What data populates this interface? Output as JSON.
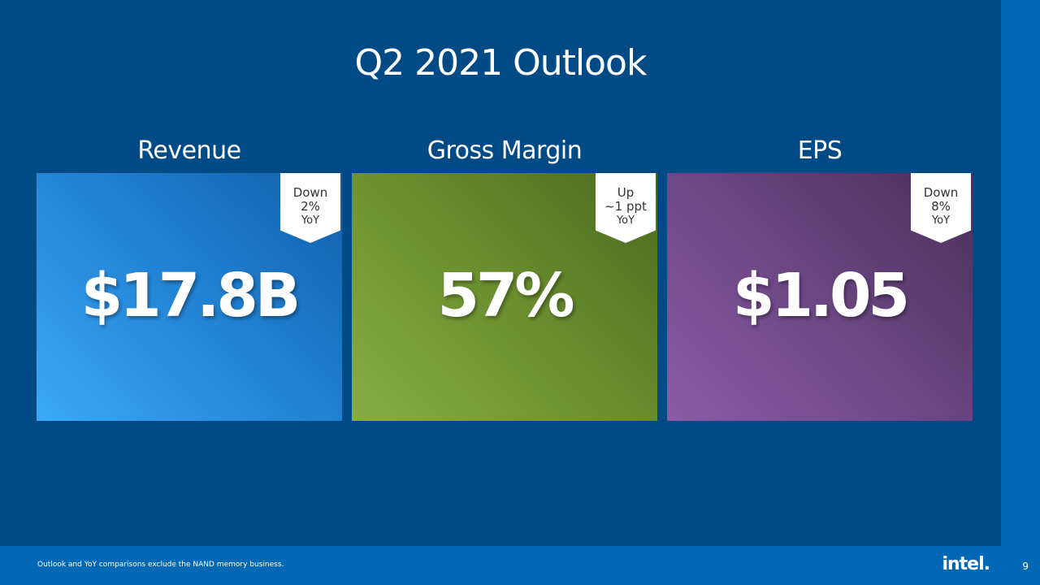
{
  "title": "Q2 2021 Outlook",
  "cards": [
    {
      "heading": "Revenue",
      "value": "$17.8B",
      "badge": [
        "Down",
        "2%",
        "YoY"
      ]
    },
    {
      "heading": "Gross Margin",
      "value": "57%",
      "badge": [
        "Up",
        "~1 ppt",
        "YoY"
      ]
    },
    {
      "heading": "EPS",
      "value": "$1.05",
      "badge": [
        "Down",
        "8%",
        "YoY"
      ]
    }
  ],
  "footer": {
    "note": "Outlook and YoY comparisons exclude the NAND memory business.",
    "logo": "intel.",
    "page": "9"
  }
}
